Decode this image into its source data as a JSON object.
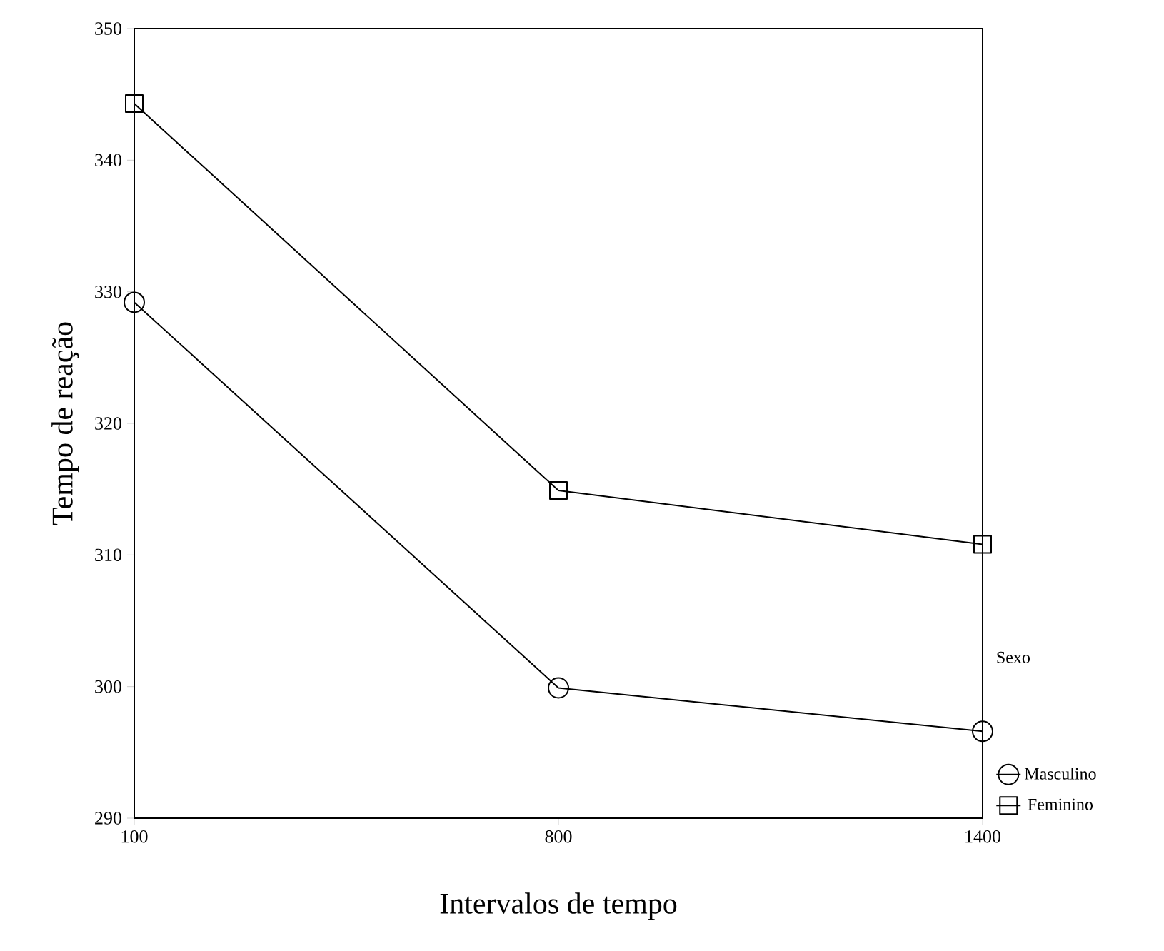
{
  "chart_data": {
    "type": "line",
    "xlabel": "Intervalos de tempo",
    "ylabel": "Tempo de reação",
    "legend_title": "Sexo",
    "legend": "bottom right",
    "categories": [
      "100",
      "800",
      "1400"
    ],
    "ylim": [
      290,
      350
    ],
    "yticks": [
      290,
      300,
      310,
      320,
      330,
      340,
      350
    ],
    "grid": false,
    "line_style": "solid",
    "series": [
      {
        "name": "Masculino",
        "color": "#000000",
        "marker": "circle",
        "values": [
          329.2,
          299.9,
          296.6
        ]
      },
      {
        "name": "Feminino",
        "color": "#000000",
        "marker": "square",
        "values": [
          344.3,
          314.9,
          310.8
        ]
      }
    ]
  }
}
